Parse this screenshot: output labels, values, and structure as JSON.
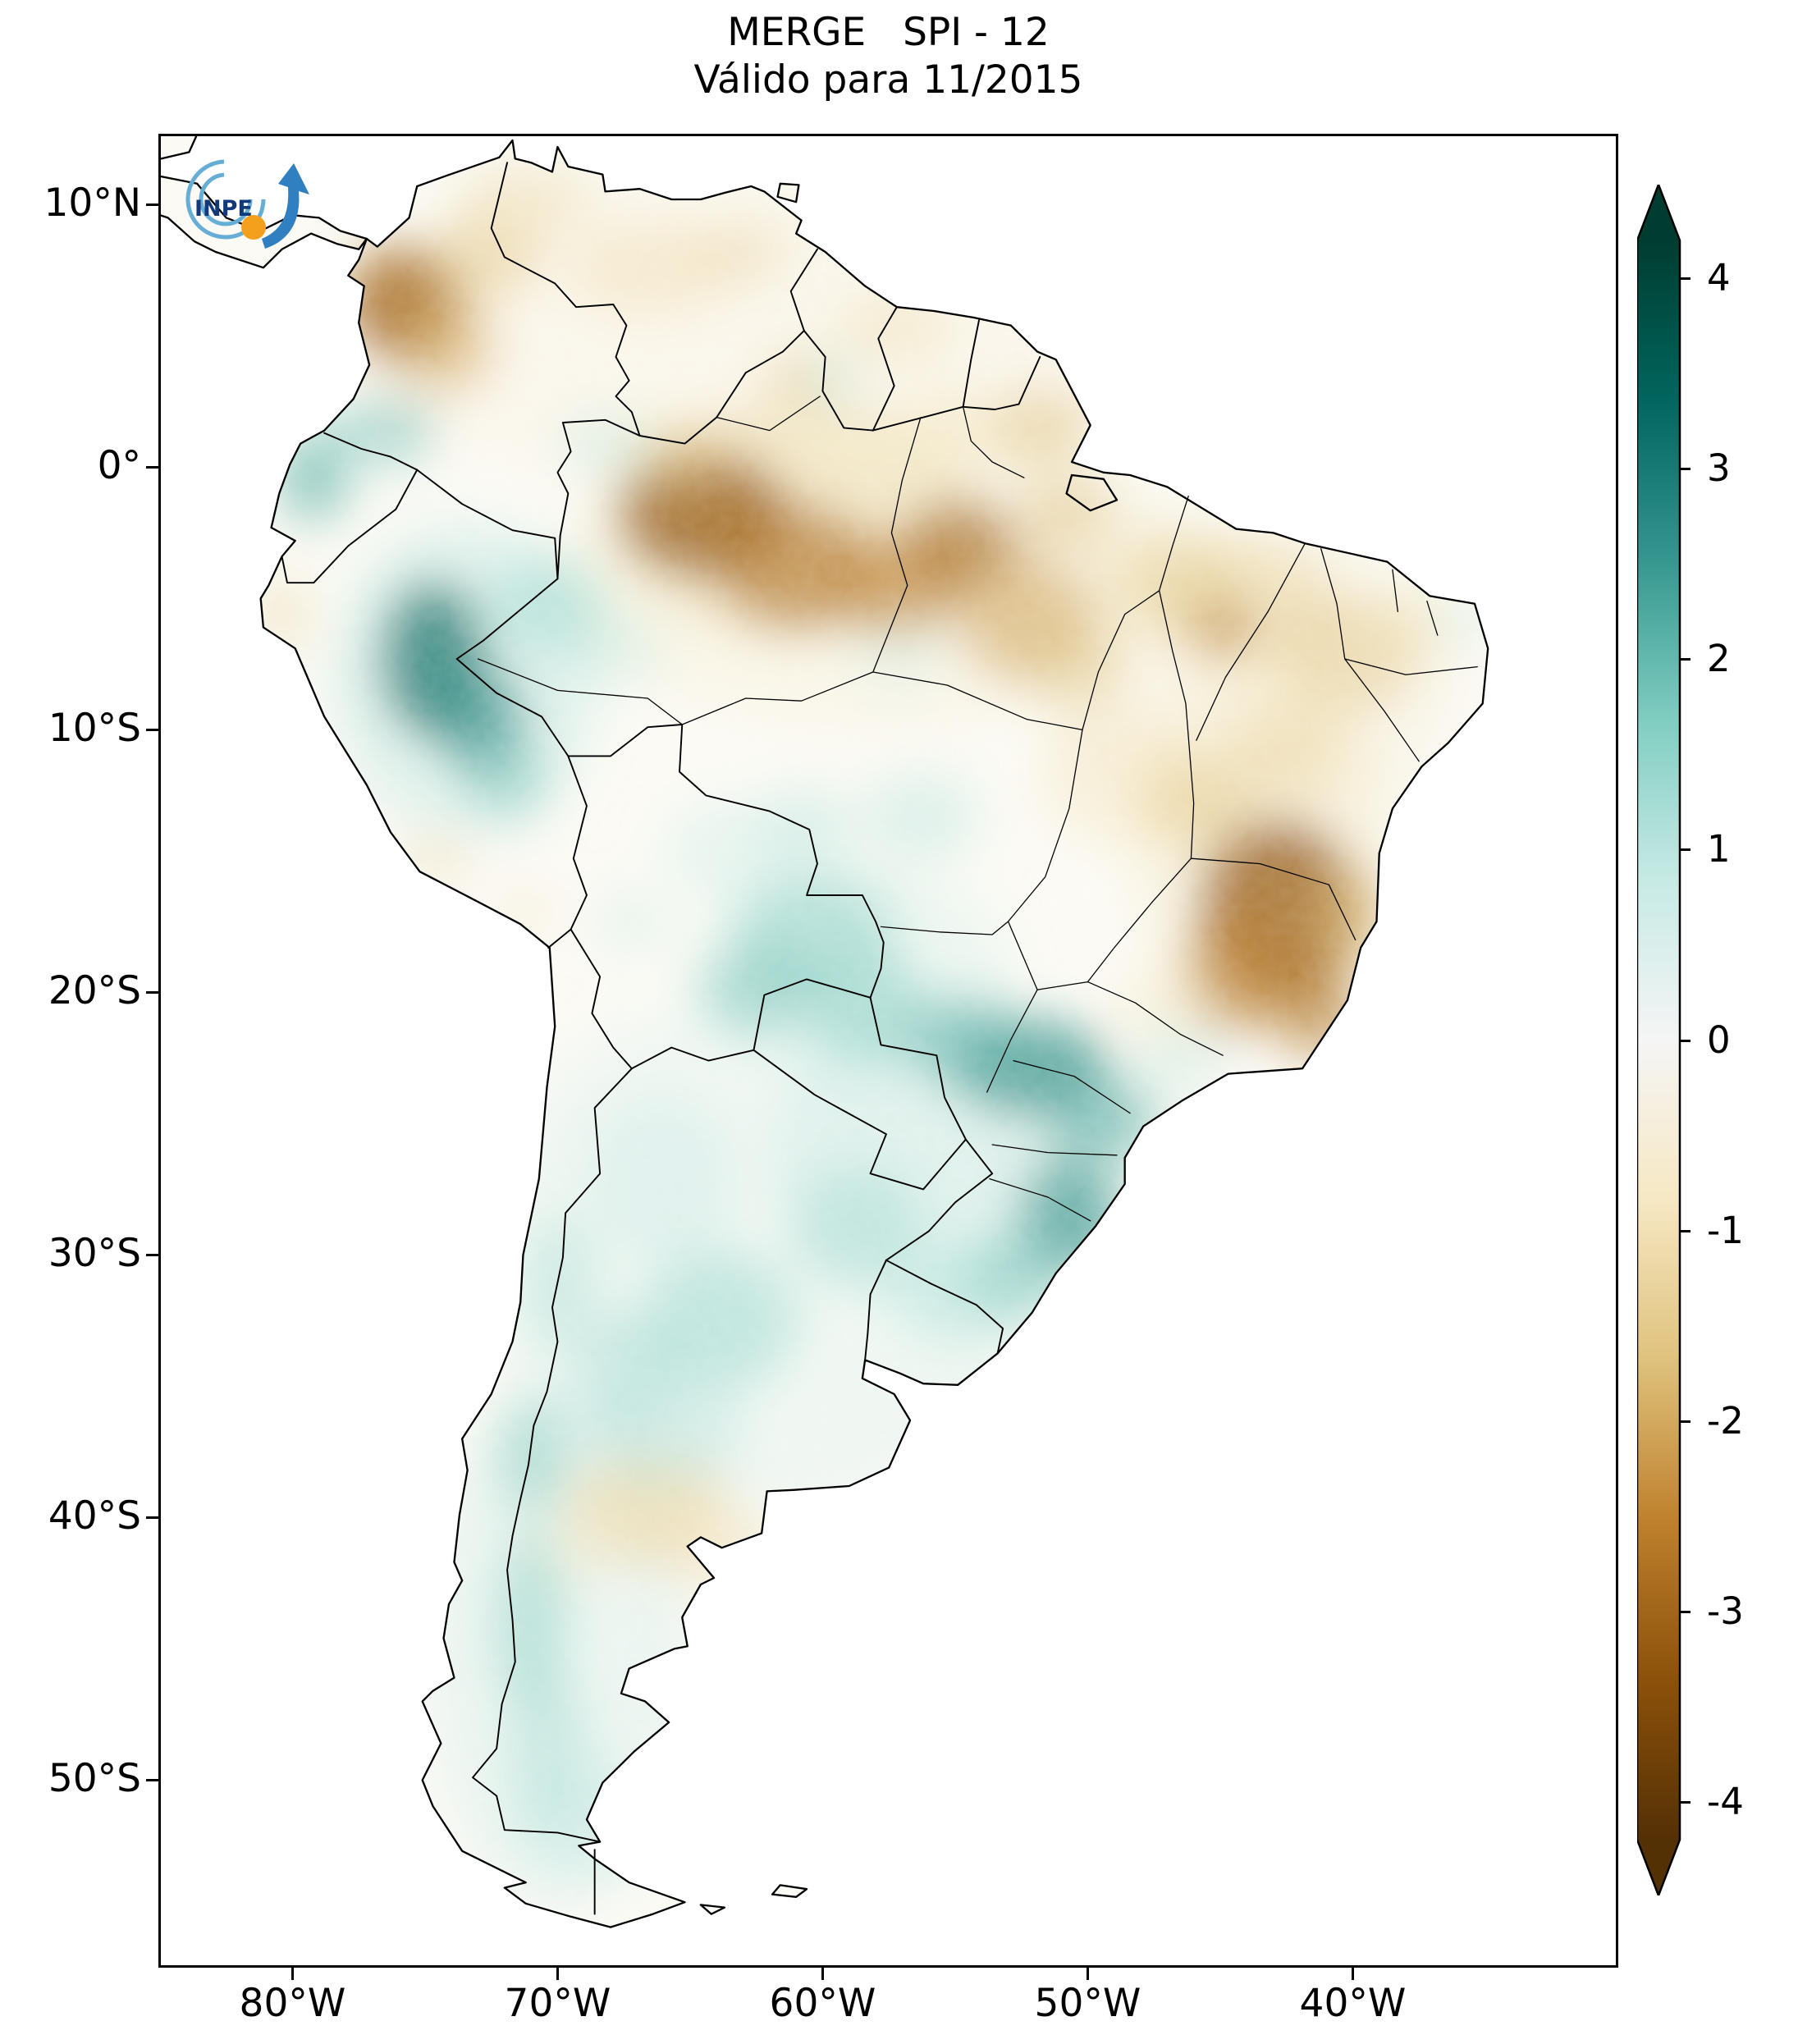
{
  "chart_data": {
    "type": "heatmap",
    "title": "MERGE   SPI - 12",
    "subtitle": "Válido para 11/2015",
    "product": "MERGE",
    "index": "SPI-12",
    "valid_for": "11/2015",
    "region": "South America",
    "projection": "lat-lon plate carree",
    "lon_range": [
      -85.06,
      -30.0
    ],
    "lat_range": [
      -57.15,
      12.7
    ],
    "x_tick_labels": [
      "80°W",
      "70°W",
      "60°W",
      "50°W",
      "40°W"
    ],
    "x_tick_lons": [
      -80,
      -70,
      -60,
      -50,
      -40
    ],
    "y_tick_labels": [
      "10°N",
      "0°",
      "10°S",
      "20°S",
      "30°S",
      "40°S",
      "50°S"
    ],
    "y_tick_lats": [
      10,
      0,
      -10,
      -20,
      -30,
      -40,
      -50
    ],
    "grid": false,
    "logo_text": "INPE",
    "colorbar": {
      "label": "",
      "orientation": "vertical",
      "position": "right",
      "extend": "both",
      "colormap": "BrBG",
      "vmin": -4.2,
      "vmax": 4.2,
      "tick_labels": [
        "4",
        "3",
        "2",
        "1",
        "0",
        "-1",
        "-2",
        "-3",
        "-4"
      ],
      "tick_values": [
        4,
        3,
        2,
        1,
        0,
        -1,
        -2,
        -3,
        -4
      ],
      "stops": [
        {
          "value": -4.2,
          "color": "#543005"
        },
        {
          "value": -3.36,
          "color": "#8c510a"
        },
        {
          "value": -2.52,
          "color": "#bf812d"
        },
        {
          "value": -1.68,
          "color": "#dfc27d"
        },
        {
          "value": -0.84,
          "color": "#f6e8c3"
        },
        {
          "value": 0.0,
          "color": "#f5f5f5"
        },
        {
          "value": 0.84,
          "color": "#c7eae5"
        },
        {
          "value": 1.68,
          "color": "#80cdc1"
        },
        {
          "value": 2.52,
          "color": "#35978f"
        },
        {
          "value": 3.36,
          "color": "#01665e"
        },
        {
          "value": 4.2,
          "color": "#003c30"
        }
      ]
    },
    "field_format": [
      "lon",
      "lat",
      "rx_deg",
      "ry_deg",
      "spi",
      "opacity"
    ],
    "field": [
      [
        -62.0,
        5.0,
        16,
        6,
        -0.6,
        0.25
      ],
      [
        -61.0,
        -2.0,
        7,
        4.5,
        -1.5,
        0.4
      ],
      [
        -58.0,
        -4.0,
        12,
        6,
        -0.7,
        0.3
      ],
      [
        -44.0,
        -8.0,
        8,
        6,
        -0.6,
        0.3
      ],
      [
        -43.5,
        -14.0,
        5,
        7,
        -0.9,
        0.35
      ],
      [
        -73.5,
        -8.0,
        5,
        6,
        1.0,
        0.4
      ],
      [
        -62.0,
        -30.0,
        11,
        10,
        0.6,
        0.3
      ],
      [
        -70.0,
        -45.0,
        5,
        10,
        0.7,
        0.35
      ],
      [
        -55.0,
        -26.0,
        7,
        6,
        0.9,
        0.35
      ],
      [
        -59.0,
        -19.0,
        6,
        4,
        0.8,
        0.3
      ],
      [
        -75.8,
        6.2,
        2.2,
        2.2,
        -3.0,
        0.85
      ],
      [
        -74.2,
        4.6,
        1.8,
        1.8,
        -2.0,
        0.55
      ],
      [
        -72.8,
        8.0,
        2.2,
        1.6,
        -1.6,
        0.5
      ],
      [
        -71.2,
        10.3,
        2.6,
        1.4,
        -1.2,
        0.45
      ],
      [
        -66.5,
        7.6,
        3.2,
        1.8,
        -1.1,
        0.45
      ],
      [
        -63.0,
        8.2,
        1.8,
        1.2,
        -1.3,
        0.4
      ],
      [
        -57.3,
        5.3,
        2.2,
        1.3,
        -1.2,
        0.4
      ],
      [
        -64.5,
        -1.8,
        3.2,
        2.4,
        -3.2,
        0.8
      ],
      [
        -61.0,
        -3.8,
        3.0,
        2.4,
        -2.8,
        0.65
      ],
      [
        -57.2,
        -4.6,
        2.4,
        2.0,
        -2.6,
        0.6
      ],
      [
        -65.5,
        0.5,
        1.8,
        1.4,
        -1.4,
        0.4
      ],
      [
        -54.8,
        -3.0,
        2.2,
        1.8,
        -3.0,
        0.65
      ],
      [
        -52.3,
        -5.8,
        2.6,
        2.4,
        -2.2,
        0.55
      ],
      [
        -50.3,
        -7.5,
        1.8,
        1.8,
        -1.6,
        0.45
      ],
      [
        -50.8,
        -1.8,
        1.8,
        1.3,
        -1.8,
        0.5
      ],
      [
        -51.8,
        1.5,
        2.0,
        1.5,
        -1.7,
        0.5
      ],
      [
        -55.3,
        1.8,
        1.8,
        1.2,
        -1.1,
        0.35
      ],
      [
        -60.9,
        3.4,
        1.3,
        1.0,
        -1.7,
        0.45
      ],
      [
        -46.8,
        -4.2,
        2.6,
        1.8,
        -1.5,
        0.45
      ],
      [
        -44.2,
        -5.2,
        3.6,
        2.4,
        -1.4,
        0.5
      ],
      [
        -44.9,
        -6.1,
        1.2,
        1.0,
        -2.8,
        0.6
      ],
      [
        -40.2,
        -7.2,
        2.6,
        2.2,
        -1.6,
        0.5
      ],
      [
        -38.0,
        -6.0,
        1.8,
        1.5,
        -1.1,
        0.35
      ],
      [
        -48.8,
        -11.8,
        3.0,
        2.6,
        -1.0,
        0.4
      ],
      [
        -45.8,
        -12.8,
        2.0,
        1.8,
        -1.7,
        0.45
      ],
      [
        -42.6,
        -10.8,
        2.2,
        1.8,
        -1.5,
        0.4
      ],
      [
        -42.8,
        -16.8,
        3.0,
        3.4,
        -3.2,
        0.8
      ],
      [
        -44.3,
        -19.2,
        2.0,
        2.4,
        -2.6,
        0.65
      ],
      [
        -41.4,
        -20.6,
        1.5,
        1.9,
        -2.8,
        0.65
      ],
      [
        -40.1,
        -17.2,
        1.6,
        1.9,
        -1.9,
        0.5
      ],
      [
        -47.0,
        -20.5,
        2.0,
        1.6,
        -1.0,
        0.35
      ],
      [
        -66.6,
        -39.6,
        3.0,
        2.2,
        -1.3,
        0.6
      ],
      [
        -63.8,
        -41.3,
        2.4,
        1.7,
        -1.0,
        0.45
      ],
      [
        -69.2,
        -41.2,
        1.8,
        1.4,
        -0.8,
        0.35
      ],
      [
        -80.4,
        -5.6,
        1.1,
        1.4,
        -1.3,
        0.45
      ],
      [
        -74.6,
        -14.9,
        1.3,
        0.9,
        -1.2,
        0.45
      ],
      [
        -71.2,
        -16.9,
        1.1,
        0.8,
        -1.0,
        0.4
      ],
      [
        -79.2,
        -0.4,
        1.3,
        1.7,
        2.2,
        0.65
      ],
      [
        -78.4,
        1.3,
        1.0,
        1.0,
        1.5,
        0.45
      ],
      [
        -76.3,
        1.4,
        1.7,
        1.3,
        2.0,
        0.5
      ],
      [
        -74.7,
        -7.3,
        2.0,
        3.0,
        3.2,
        0.75
      ],
      [
        -72.9,
        -9.7,
        1.7,
        2.1,
        2.8,
        0.65
      ],
      [
        -71.9,
        -11.9,
        1.5,
        1.5,
        1.8,
        0.5
      ],
      [
        -70.3,
        -5.2,
        2.2,
        1.9,
        1.5,
        0.45
      ],
      [
        -67.9,
        -6.9,
        1.9,
        1.5,
        1.0,
        0.35
      ],
      [
        -68.2,
        0.9,
        1.9,
        1.3,
        1.0,
        0.35
      ],
      [
        -59.6,
        3.3,
        1.3,
        0.9,
        1.2,
        0.3
      ],
      [
        -60.3,
        -17.7,
        3.0,
        2.2,
        1.7,
        0.5
      ],
      [
        -62.4,
        -19.9,
        2.2,
        1.7,
        1.9,
        0.5
      ],
      [
        -58.3,
        -20.6,
        2.3,
        2.1,
        1.7,
        0.5
      ],
      [
        -56.3,
        -13.3,
        2.2,
        1.7,
        1.1,
        0.4
      ],
      [
        -60.6,
        -13.6,
        1.9,
        1.4,
        1.2,
        0.35
      ],
      [
        -52.1,
        -22.9,
        2.9,
        1.9,
        2.7,
        0.7
      ],
      [
        -54.6,
        -21.9,
        2.3,
        1.7,
        2.2,
        0.55
      ],
      [
        -49.4,
        -24.9,
        2.1,
        1.5,
        2.3,
        0.55
      ],
      [
        -50.7,
        -28.5,
        1.9,
        2.3,
        2.7,
        0.65
      ],
      [
        -52.9,
        -30.9,
        1.9,
        1.7,
        1.9,
        0.5
      ],
      [
        -55.1,
        -31.6,
        2.4,
        1.9,
        1.2,
        0.4
      ],
      [
        -58.7,
        -28.9,
        2.5,
        2.3,
        1.4,
        0.45
      ],
      [
        -63.9,
        -32.5,
        2.9,
        2.7,
        1.5,
        0.5
      ],
      [
        -67.4,
        -34.4,
        1.9,
        2.3,
        1.4,
        0.45
      ],
      [
        -65.9,
        -36.7,
        2.9,
        1.9,
        1.1,
        0.45
      ],
      [
        -69.9,
        -31.1,
        1.3,
        2.7,
        1.4,
        0.4
      ],
      [
        -70.9,
        -37.7,
        1.3,
        2.3,
        1.8,
        0.5
      ],
      [
        -71.0,
        -44.1,
        1.3,
        3.6,
        1.7,
        0.5
      ],
      [
        -70.3,
        -49.1,
        1.5,
        2.9,
        1.3,
        0.45
      ],
      [
        -69.1,
        -51.6,
        2.5,
        2.1,
        1.0,
        0.4
      ],
      [
        -67.1,
        -17.3,
        1.3,
        1.1,
        1.0,
        0.35
      ],
      [
        -63.1,
        -14.6,
        2.9,
        1.9,
        0.9,
        0.35
      ],
      [
        -66.1,
        -27.1,
        2.9,
        3.3,
        0.9,
        0.35
      ],
      [
        -46.6,
        -22.6,
        1.9,
        1.4,
        1.0,
        0.35
      ],
      [
        -35.8,
        -5.8,
        0.9,
        0.9,
        1.0,
        0.4
      ],
      [
        -57.1,
        -7.1,
        1.9,
        1.5,
        0.8,
        0.3
      ]
    ]
  }
}
